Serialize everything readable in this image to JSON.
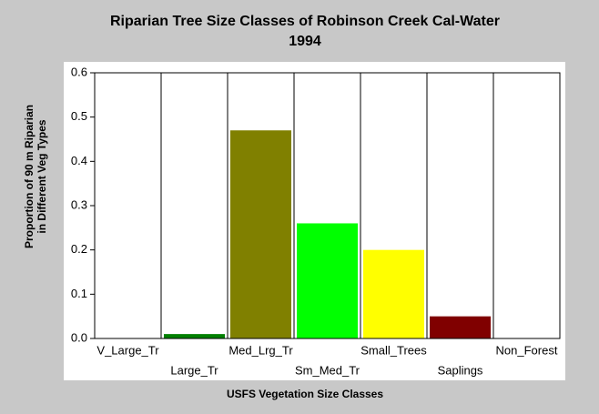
{
  "chart_data": {
    "type": "bar",
    "title": [
      "Riparian Tree Size Classes of Robinson Creek Cal-Water",
      "1994"
    ],
    "x_label": "USFS Vegetation Size Classes",
    "y_label": [
      "Proportion of 90 m Riparian",
      "in Different Veg Types"
    ],
    "categories": [
      "V_Large_Tr",
      "Large_Tr",
      "Med_Lrg_Tr",
      "Sm_Med_Tr",
      "Small_Trees",
      "Saplings",
      "Non_Forest"
    ],
    "values": [
      0,
      0.01,
      0.47,
      0.26,
      0.2,
      0.05,
      0
    ],
    "colors": [
      null,
      "#008000",
      "#808000",
      "#00ff00",
      "#ffff00",
      "#800000",
      null
    ],
    "ylim": [
      0,
      0.6
    ],
    "yticks": [
      {
        "value": 0,
        "label": "0.0"
      },
      0.1,
      0.2,
      0.3,
      0.4,
      0.5,
      0.6
    ],
    "grid": true
  }
}
